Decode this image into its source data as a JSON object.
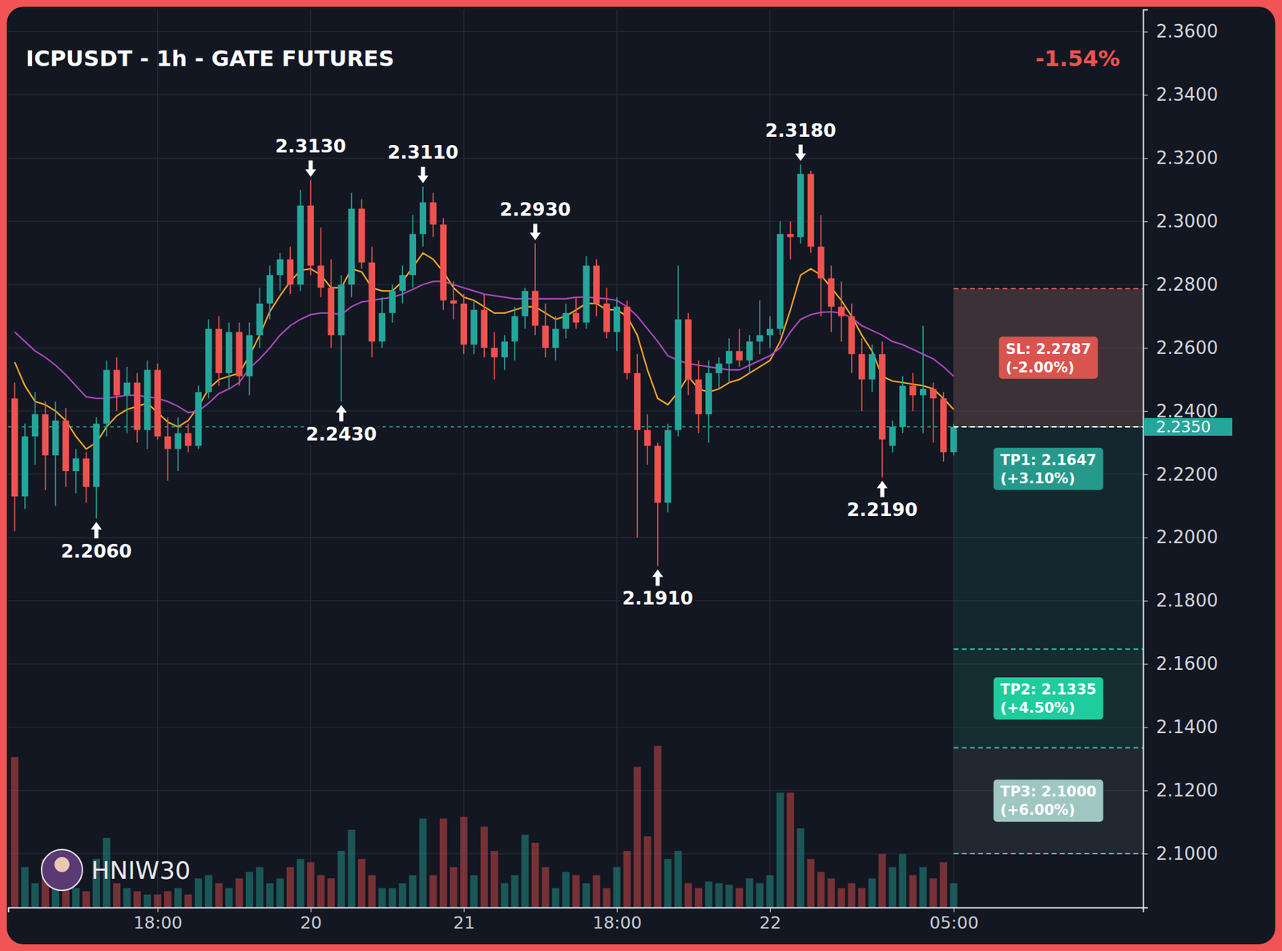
{
  "chart_data": {
    "type": "candlestick",
    "title": "ICPUSDT - 1h - GATE FUTURES",
    "change_label": "-1.54%",
    "watermark": "HNIW30",
    "categories": [
      null,
      null,
      null,
      null,
      null,
      null,
      null,
      null,
      null,
      null,
      null,
      null,
      null,
      null,
      "18:00",
      null,
      null,
      null,
      null,
      null,
      null,
      null,
      null,
      null,
      null,
      null,
      null,
      null,
      null,
      "20",
      null,
      null,
      null,
      null,
      null,
      null,
      null,
      null,
      null,
      null,
      null,
      null,
      null,
      null,
      "21",
      null,
      null,
      null,
      null,
      null,
      null,
      null,
      null,
      null,
      null,
      null,
      null,
      null,
      null,
      "18:00",
      null,
      null,
      null,
      null,
      null,
      null,
      null,
      null,
      null,
      null,
      null,
      null,
      null,
      null,
      "22",
      null,
      null,
      null,
      null,
      null,
      null,
      null,
      null,
      null,
      null,
      null,
      null,
      null,
      null,
      null,
      null,
      null,
      "05:00"
    ],
    "open": [
      2.244,
      2.213,
      2.232,
      2.239,
      2.226,
      2.237,
      2.221,
      2.225,
      2.216,
      2.236,
      2.253,
      2.245,
      2.249,
      2.234,
      2.253,
      2.232,
      2.228,
      2.233,
      2.229,
      2.246,
      2.266,
      2.252,
      2.265,
      2.251,
      2.264,
      2.274,
      2.283,
      2.288,
      2.28,
      2.305,
      2.286,
      2.279,
      2.264,
      2.28,
      2.304,
      2.287,
      2.262,
      2.271,
      2.278,
      2.283,
      2.296,
      2.306,
      2.299,
      2.275,
      2.274,
      2.261,
      2.272,
      2.26,
      2.257,
      2.262,
      2.27,
      2.278,
      2.267,
      2.26,
      2.266,
      2.271,
      2.268,
      2.286,
      2.274,
      2.265,
      2.273,
      2.252,
      2.234,
      2.229,
      2.211,
      2.234,
      2.269,
      2.25,
      2.239,
      2.252,
      2.255,
      2.259,
      2.256,
      2.262,
      2.264,
      2.266,
      2.296,
      2.295,
      2.315,
      2.292,
      2.282,
      2.273,
      2.27,
      2.258,
      2.25,
      2.258,
      2.229,
      2.235,
      2.248,
      2.245,
      2.247,
      2.244,
      2.227
    ],
    "high": [
      2.249,
      2.236,
      2.246,
      2.243,
      2.243,
      2.241,
      2.228,
      2.227,
      2.238,
      2.256,
      2.257,
      2.254,
      2.252,
      2.256,
      2.255,
      2.238,
      2.238,
      2.236,
      2.248,
      2.269,
      2.27,
      2.268,
      2.268,
      2.268,
      2.279,
      2.286,
      2.29,
      2.292,
      2.31,
      2.313,
      2.298,
      2.288,
      2.283,
      2.309,
      2.307,
      2.292,
      2.276,
      2.28,
      2.286,
      2.302,
      2.311,
      2.309,
      2.301,
      2.281,
      2.277,
      2.275,
      2.277,
      2.265,
      2.264,
      2.273,
      2.279,
      2.293,
      2.274,
      2.27,
      2.274,
      2.276,
      2.289,
      2.288,
      2.279,
      2.276,
      2.275,
      2.258,
      2.239,
      2.23,
      2.236,
      2.286,
      2.271,
      2.256,
      2.256,
      2.257,
      2.263,
      2.266,
      2.264,
      2.275,
      2.27,
      2.3,
      2.3,
      2.318,
      2.316,
      2.302,
      2.286,
      2.281,
      2.274,
      2.263,
      2.261,
      2.262,
      2.237,
      2.251,
      2.252,
      2.267,
      2.249,
      2.246,
      2.236
    ],
    "low": [
      2.202,
      2.209,
      2.223,
      2.215,
      2.21,
      2.216,
      2.214,
      2.211,
      2.206,
      2.232,
      2.24,
      2.233,
      2.23,
      2.228,
      2.231,
      2.218,
      2.221,
      2.227,
      2.228,
      2.244,
      2.248,
      2.247,
      2.248,
      2.245,
      2.26,
      2.269,
      2.278,
      2.277,
      2.278,
      2.283,
      2.276,
      2.26,
      2.243,
      2.276,
      2.285,
      2.257,
      2.26,
      2.268,
      2.274,
      2.279,
      2.292,
      2.295,
      2.272,
      2.269,
      2.258,
      2.258,
      2.257,
      2.25,
      2.253,
      2.256,
      2.266,
      2.264,
      2.257,
      2.256,
      2.263,
      2.266,
      2.266,
      2.27,
      2.263,
      2.259,
      2.25,
      2.2,
      2.223,
      2.191,
      2.208,
      2.232,
      2.245,
      2.233,
      2.23,
      2.247,
      2.249,
      2.254,
      2.252,
      2.258,
      2.26,
      2.264,
      2.288,
      2.293,
      2.29,
      2.27,
      2.265,
      2.262,
      2.252,
      2.24,
      2.246,
      2.219,
      2.227,
      2.233,
      2.24,
      2.233,
      2.23,
      2.224,
      2.226
    ],
    "close": [
      2.213,
      2.232,
      2.239,
      2.226,
      2.237,
      2.221,
      2.225,
      2.216,
      2.236,
      2.253,
      2.245,
      2.249,
      2.234,
      2.253,
      2.232,
      2.228,
      2.233,
      2.229,
      2.246,
      2.266,
      2.252,
      2.265,
      2.251,
      2.264,
      2.274,
      2.283,
      2.288,
      2.28,
      2.305,
      2.286,
      2.279,
      2.264,
      2.28,
      2.304,
      2.287,
      2.262,
      2.271,
      2.278,
      2.283,
      2.296,
      2.306,
      2.299,
      2.275,
      2.274,
      2.261,
      2.272,
      2.26,
      2.257,
      2.262,
      2.27,
      2.278,
      2.267,
      2.26,
      2.266,
      2.271,
      2.268,
      2.286,
      2.274,
      2.265,
      2.273,
      2.252,
      2.234,
      2.229,
      2.211,
      2.234,
      2.269,
      2.25,
      2.239,
      2.252,
      2.255,
      2.259,
      2.256,
      2.262,
      2.264,
      2.266,
      2.296,
      2.295,
      2.315,
      2.292,
      2.282,
      2.273,
      2.27,
      2.258,
      2.25,
      2.258,
      2.231,
      2.235,
      2.248,
      2.245,
      2.247,
      2.244,
      2.227,
      2.235
    ],
    "volume": [
      93,
      25,
      15,
      30,
      20,
      15,
      12,
      10,
      30,
      43,
      15,
      12,
      10,
      8,
      8,
      10,
      12,
      8,
      18,
      20,
      15,
      12,
      18,
      22,
      25,
      15,
      18,
      25,
      30,
      28,
      20,
      18,
      35,
      48,
      30,
      20,
      12,
      12,
      15,
      20,
      55,
      20,
      55,
      25,
      56,
      20,
      50,
      35,
      15,
      20,
      45,
      40,
      25,
      12,
      22,
      20,
      15,
      20,
      12,
      25,
      35,
      87,
      44,
      100,
      30,
      35,
      15,
      12,
      16,
      15,
      14,
      12,
      18,
      15,
      20,
      71,
      71,
      49,
      30,
      22,
      18,
      12,
      15,
      12,
      18,
      33,
      25,
      33,
      20,
      25,
      18,
      28,
      15
    ],
    "volume_lim": [
      0,
      100
    ],
    "series": [
      {
        "color": "#f5a623",
        "values": [
          2.2555,
          2.248,
          2.243,
          2.242,
          2.24,
          2.237,
          2.232,
          2.228,
          2.23,
          2.235,
          2.2385,
          2.2405,
          2.2415,
          2.2425,
          2.2395,
          2.2365,
          2.235,
          2.237,
          2.2415,
          2.247,
          2.25,
          2.251,
          2.252,
          2.2575,
          2.264,
          2.2715,
          2.2765,
          2.281,
          2.2845,
          2.285,
          2.283,
          2.279,
          2.279,
          2.285,
          2.284,
          2.279,
          2.278,
          2.278,
          2.281,
          2.2855,
          2.29,
          2.288,
          2.284,
          2.279,
          2.276,
          2.275,
          2.273,
          2.271,
          2.271,
          2.272,
          2.273,
          2.273,
          2.271,
          2.269,
          2.27,
          2.272,
          2.274,
          2.274,
          2.272,
          2.272,
          2.27,
          2.264,
          2.253,
          2.244,
          2.242,
          2.246,
          2.251,
          2.247,
          2.246,
          2.247,
          2.249,
          2.25,
          2.252,
          2.254,
          2.256,
          2.262,
          2.272,
          2.283,
          2.285,
          2.283,
          2.279,
          2.275,
          2.27,
          2.264,
          2.259,
          2.251,
          2.2495,
          2.249,
          2.2485,
          2.248,
          2.247,
          2.244,
          2.2405
        ]
      },
      {
        "color": "#ab47bc",
        "values": [
          2.265,
          2.262,
          2.259,
          2.257,
          2.2545,
          2.2515,
          2.248,
          2.2445,
          2.244,
          2.244,
          2.2445,
          2.245,
          2.245,
          2.2445,
          2.244,
          2.243,
          2.2415,
          2.2395,
          2.24,
          2.2425,
          2.2455,
          2.247,
          2.249,
          2.2535,
          2.2565,
          2.26,
          2.264,
          2.267,
          2.269,
          2.2705,
          2.271,
          2.271,
          2.2705,
          2.273,
          2.2745,
          2.275,
          2.2755,
          2.276,
          2.277,
          2.2785,
          2.28,
          2.281,
          2.281,
          2.28,
          2.279,
          2.278,
          2.277,
          2.2765,
          2.276,
          2.2755,
          2.2755,
          2.2755,
          2.2755,
          2.2755,
          2.2755,
          2.276,
          2.276,
          2.2758,
          2.2755,
          2.275,
          2.273,
          2.27,
          2.266,
          2.262,
          2.2575,
          2.256,
          2.255,
          2.2545,
          2.254,
          2.2535,
          2.253,
          2.253,
          2.2545,
          2.256,
          2.2575,
          2.26,
          2.265,
          2.269,
          2.2705,
          2.2712,
          2.2714,
          2.271,
          2.2695,
          2.267,
          2.2655,
          2.264,
          2.262,
          2.261,
          2.2595,
          2.258,
          2.2565,
          2.254,
          2.251
        ]
      }
    ],
    "ylim": [
      2.083,
      2.367
    ],
    "yticks": [
      {
        "value": 2.1,
        "label": "2.1000"
      },
      {
        "value": 2.12,
        "label": "2.1200"
      },
      {
        "value": 2.14,
        "label": "2.1400"
      },
      {
        "value": 2.16,
        "label": "2.1600"
      },
      {
        "value": 2.18,
        "label": "2.1800"
      },
      {
        "value": 2.2,
        "label": "2.2000"
      },
      {
        "value": 2.22,
        "label": "2.2200"
      },
      {
        "value": 2.24,
        "label": "2.2400"
      },
      {
        "value": 2.26,
        "label": "2.2600"
      },
      {
        "value": 2.28,
        "label": "2.2800"
      },
      {
        "value": 2.3,
        "label": "2.3000"
      },
      {
        "value": 2.32,
        "label": "2.3200"
      },
      {
        "value": 2.34,
        "label": "2.3400"
      },
      {
        "value": 2.36,
        "label": "2.3600"
      }
    ],
    "grid": true,
    "last_price": 2.235,
    "last_price_label": "2.2350",
    "entry": 2.235,
    "levels": [
      {
        "value": 2.2787,
        "label": "SL: 2.2787",
        "pct_label": "(-2.00%)",
        "color": "#d9534f"
      },
      {
        "value": 2.1647,
        "label": "TP1: 2.1647",
        "pct_label": "(+3.10%)",
        "color": "#26998c"
      },
      {
        "value": 2.1335,
        "label": "TP2: 2.1335",
        "pct_label": "(+4.50%)",
        "color": "#1fcc9e"
      },
      {
        "value": 2.1,
        "label": "TP3: 2.1000",
        "pct_label": "(+6.00%)",
        "color": "#9fc7c1"
      }
    ],
    "annotations": [
      {
        "index": 29,
        "value": 2.313,
        "label": "2.3130",
        "position": "high"
      },
      {
        "index": 40,
        "value": 2.311,
        "label": "2.3110",
        "position": "high"
      },
      {
        "index": 51,
        "value": 2.293,
        "label": "2.2930",
        "position": "high"
      },
      {
        "index": 77,
        "value": 2.318,
        "label": "2.3180",
        "position": "high"
      },
      {
        "index": 8,
        "value": 2.206,
        "label": "2.2060",
        "position": "low"
      },
      {
        "index": 32,
        "value": 2.243,
        "label": "2.2430",
        "position": "low"
      },
      {
        "index": 63,
        "value": 2.191,
        "label": "2.1910",
        "position": "low"
      },
      {
        "index": 85,
        "value": 2.219,
        "label": "2.2190",
        "position": "low"
      }
    ]
  }
}
